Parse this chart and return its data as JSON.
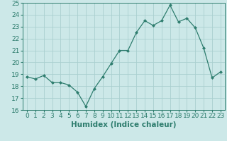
{
  "x": [
    0,
    1,
    2,
    3,
    4,
    5,
    6,
    7,
    8,
    9,
    10,
    11,
    12,
    13,
    14,
    15,
    16,
    17,
    18,
    19,
    20,
    21,
    22,
    23
  ],
  "y": [
    18.8,
    18.6,
    18.9,
    18.3,
    18.3,
    18.1,
    17.5,
    16.3,
    17.8,
    18.8,
    19.9,
    21.0,
    21.0,
    22.5,
    23.5,
    23.1,
    23.5,
    24.8,
    23.4,
    23.7,
    22.9,
    21.2,
    18.7,
    19.2
  ],
  "line_color": "#2e7d6e",
  "marker": "D",
  "marker_size": 2,
  "bg_color": "#cce8e8",
  "grid_color": "#aacfcf",
  "xlabel": "Humidex (Indice chaleur)",
  "xlim": [
    -0.5,
    23.5
  ],
  "ylim": [
    16,
    25
  ],
  "yticks": [
    16,
    17,
    18,
    19,
    20,
    21,
    22,
    23,
    24,
    25
  ],
  "xticks": [
    0,
    1,
    2,
    3,
    4,
    5,
    6,
    7,
    8,
    9,
    10,
    11,
    12,
    13,
    14,
    15,
    16,
    17,
    18,
    19,
    20,
    21,
    22,
    23
  ],
  "tick_label_fontsize": 6.5,
  "xlabel_fontsize": 7.5
}
